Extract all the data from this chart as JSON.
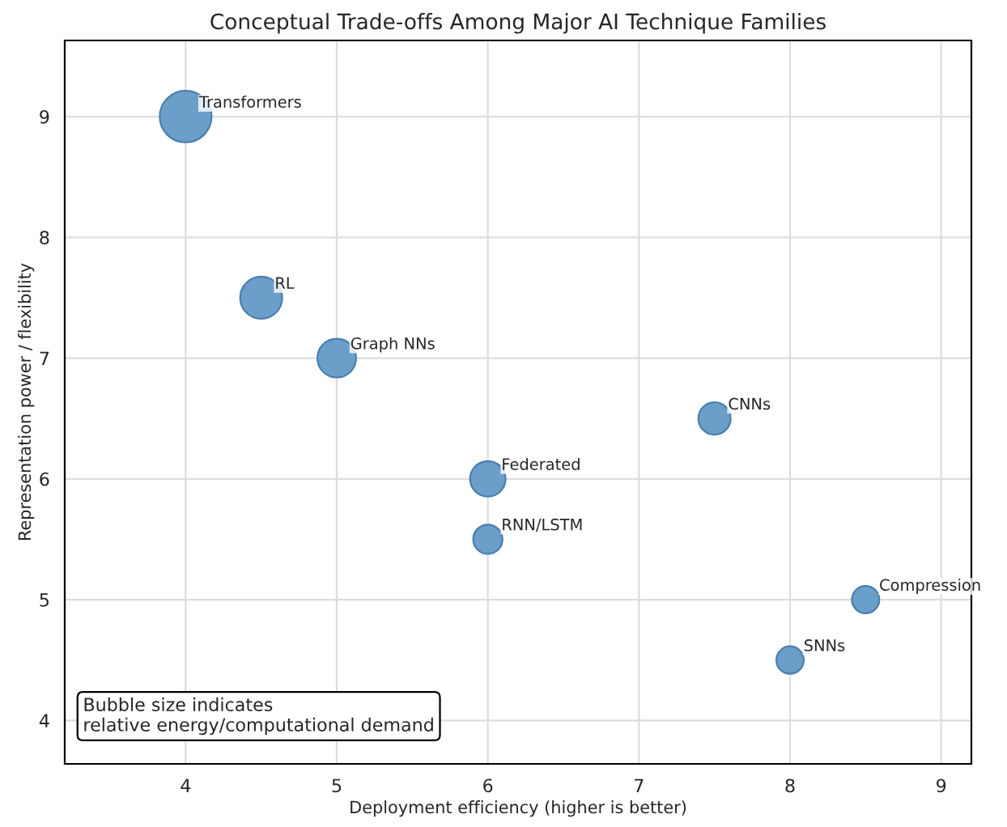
{
  "chart_data": {
    "type": "bubble",
    "title": "Conceptual Trade-offs Among Major AI Technique Families",
    "xlabel": "Deployment efficiency (higher is better)",
    "ylabel": "Representation power / flexibility",
    "x": [
      4,
      4.5,
      5,
      6,
      6,
      7.5,
      8.5,
      8
    ],
    "values": [
      9,
      7.5,
      7,
      6,
      5.5,
      6.5,
      5,
      4.5
    ],
    "sizes": [
      1,
      0.66,
      0.56,
      0.47,
      0.32,
      0.39,
      0.28,
      0.28
    ],
    "color": "#6b9fca",
    "xlim": [
      3.2,
      9.2
    ],
    "ylim": [
      3.64,
      9.63
    ],
    "xticks": [
      4,
      5,
      6,
      7,
      8,
      9
    ],
    "yticks": [
      4,
      5,
      6,
      7,
      8,
      9
    ],
    "grid": true,
    "annotations": [
      {
        "text": "Transformers",
        "x": 4,
        "y": 9
      },
      {
        "text": "RL",
        "x": 4.5,
        "y": 7.5
      },
      {
        "text": "Graph NNs",
        "x": 5,
        "y": 7
      },
      {
        "text": "Federated",
        "x": 6,
        "y": 6
      },
      {
        "text": "RNN/LSTM",
        "x": 6,
        "y": 5.5
      },
      {
        "text": "CNNs",
        "x": 7.5,
        "y": 6.5
      },
      {
        "text": "Compression",
        "x": 8.5,
        "y": 5
      },
      {
        "text": "SNNs",
        "x": 8,
        "y": 4.5
      },
      "Bubble size indicates\nrelative energy/computational demand"
    ]
  }
}
